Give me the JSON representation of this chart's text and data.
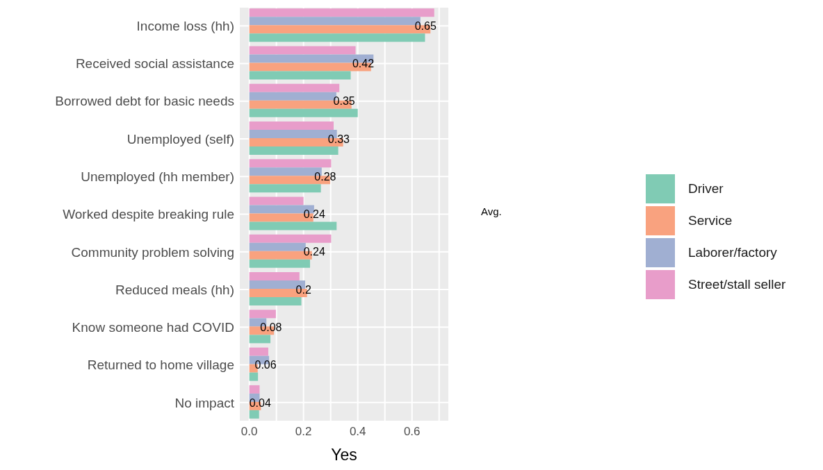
{
  "chart_data": {
    "type": "bar",
    "orientation": "horizontal",
    "xlabel": "Yes",
    "categories": [
      "Income loss (hh)",
      "Received social assistance",
      "Borrowed debt for basic needs",
      "Unemployed (self)",
      "Unemployed (hh member)",
      "Worked despite breaking rule",
      "Community problem solving",
      "Reduced meals (hh)",
      "Know someone had COVID",
      "Returned to home village",
      "No impact"
    ],
    "series": [
      {
        "name": "Driver",
        "color": "#80cbb4",
        "values": [
          0.648,
          0.374,
          0.4,
          0.328,
          0.264,
          0.322,
          0.224,
          0.192,
          0.078,
          0.032,
          0.036
        ]
      },
      {
        "name": "Service",
        "color": "#f9a27f",
        "values": [
          0.668,
          0.449,
          0.377,
          0.346,
          0.298,
          0.236,
          0.231,
          0.213,
          0.091,
          0.031,
          0.043
        ]
      },
      {
        "name": "Laborer/factory",
        "color": "#a0afd2",
        "values": [
          0.631,
          0.458,
          0.321,
          0.323,
          0.267,
          0.239,
          0.208,
          0.206,
          0.063,
          0.073,
          0.038
        ]
      },
      {
        "name": "Street/stall seller",
        "color": "#e89dca",
        "values": [
          0.682,
          0.392,
          0.332,
          0.311,
          0.302,
          0.2,
          0.302,
          0.185,
          0.098,
          0.07,
          0.038
        ]
      }
    ],
    "xlim": [
      -0.035,
      0.734
    ],
    "xticks": [
      {
        "value": 0,
        "label": "0.0"
      },
      {
        "value": 0.1,
        "label": null
      },
      {
        "value": 0.2,
        "label": "0.2"
      },
      {
        "value": 0.3,
        "label": null
      },
      {
        "value": 0.4,
        "label": "0.4"
      },
      {
        "value": 0.5,
        "label": null
      },
      {
        "value": 0.6,
        "label": "0.6"
      },
      {
        "value": 0.7,
        "label": null
      }
    ],
    "grid": true,
    "legend": "right",
    "annotations": [
      {
        "text": "0.65",
        "x": 0.65,
        "y": "Income loss (hh)"
      },
      {
        "text": "0.42",
        "x": 0.42,
        "y": "Received social assistance"
      },
      {
        "text": "0.35",
        "x": 0.35,
        "y": "Borrowed debt for basic needs"
      },
      {
        "text": "0.33",
        "x": 0.33,
        "y": "Unemployed (self)"
      },
      {
        "text": "0.28",
        "x": 0.28,
        "y": "Unemployed (hh member)"
      },
      {
        "text": "0.24",
        "x": 0.24,
        "y": "Worked despite breaking rule"
      },
      {
        "text": "0.24",
        "x": 0.24,
        "y": "Community problem solving"
      },
      {
        "text": "0.2",
        "x": 0.2,
        "y": "Reduced meals (hh)"
      },
      {
        "text": "0.08",
        "x": 0.08,
        "y": "Know someone had COVID"
      },
      {
        "text": "0.06",
        "x": 0.06,
        "y": "Returned to home village"
      },
      {
        "text": "0.04",
        "x": 0.04,
        "y": "No impact"
      },
      "Avg."
    ]
  }
}
